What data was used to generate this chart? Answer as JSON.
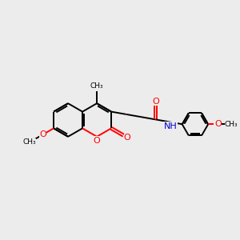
{
  "bg_color": "#ececec",
  "bond_color": "#000000",
  "oxygen_color": "#ff0000",
  "nitrogen_color": "#0000cd",
  "line_width": 1.4,
  "figsize": [
    3.0,
    3.0
  ],
  "dpi": 100,
  "xlim": [
    0,
    10
  ],
  "ylim": [
    0,
    10
  ]
}
